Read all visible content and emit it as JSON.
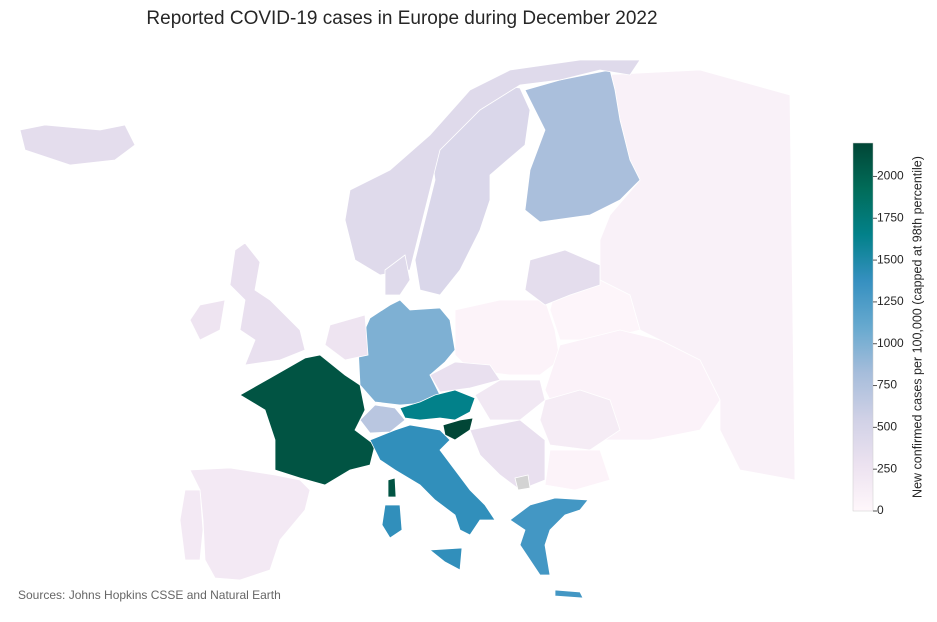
{
  "chart_data": {
    "type": "choropleth",
    "title": "Reported COVID-19 cases in Europe during December 2022",
    "source": "Sources: Johns Hopkins CSSE and Natural Earth",
    "colorbar_label": "New confirmed cases per 100,000 (capped at 98th percentile)",
    "values": [
      2100,
      1000,
      1400,
      700,
      1650,
      2200,
      1300,
      800,
      450,
      400,
      300,
      250,
      350,
      180,
      180,
      50,
      30,
      60,
      80,
      350,
      400,
      250,
      300,
      200,
      150,
      300,
      50,
      null
    ],
    "zlim": [
      0,
      2200
    ],
    "zticks": [
      0,
      250,
      500,
      750,
      1000,
      1250,
      1500,
      1750,
      2000
    ],
    "colormap": [
      "#fff7fb",
      "#ece2f0",
      "#d0d1e6",
      "#a6bddb",
      "#67a9cf",
      "#3690c0",
      "#02818a",
      "#016c59",
      "#014636"
    ],
    "null_color": "#d3d3d3"
  }
}
